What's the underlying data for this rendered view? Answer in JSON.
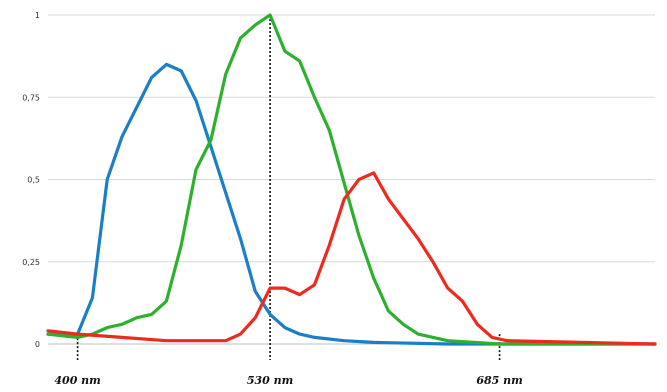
{
  "chart_data": {
    "type": "line",
    "title": "",
    "xlabel": "",
    "ylabel": "",
    "xlim": [
      380,
      790
    ],
    "ylim": [
      0,
      1
    ],
    "grid": true,
    "legend": "none",
    "y_ticks": [
      {
        "value": 0,
        "label": "0"
      },
      {
        "value": 0.25,
        "label": "0,25"
      },
      {
        "value": 0.5,
        "label": "0,5"
      },
      {
        "value": 0.75,
        "label": "0,75"
      },
      {
        "value": 1,
        "label": "1"
      }
    ],
    "x_markers": [
      {
        "value": 400,
        "label": "400 nm"
      },
      {
        "value": 530,
        "label": "530 nm"
      },
      {
        "value": 685,
        "label": "685 nm"
      }
    ],
    "series": [
      {
        "color": "#1a7fc4",
        "points": [
          [
            380,
            0.03
          ],
          [
            400,
            0.03
          ],
          [
            410,
            0.14
          ],
          [
            420,
            0.5
          ],
          [
            430,
            0.63
          ],
          [
            440,
            0.72
          ],
          [
            450,
            0.81
          ],
          [
            460,
            0.85
          ],
          [
            470,
            0.83
          ],
          [
            480,
            0.74
          ],
          [
            490,
            0.6
          ],
          [
            500,
            0.46
          ],
          [
            510,
            0.32
          ],
          [
            520,
            0.16
          ],
          [
            530,
            0.09
          ],
          [
            540,
            0.05
          ],
          [
            550,
            0.03
          ],
          [
            560,
            0.02
          ],
          [
            580,
            0.01
          ],
          [
            600,
            0.005
          ],
          [
            650,
            0.0
          ],
          [
            790,
            0.0
          ]
        ]
      },
      {
        "color": "#2db02d",
        "points": [
          [
            380,
            0.03
          ],
          [
            400,
            0.02
          ],
          [
            410,
            0.03
          ],
          [
            420,
            0.05
          ],
          [
            430,
            0.06
          ],
          [
            440,
            0.08
          ],
          [
            450,
            0.09
          ],
          [
            460,
            0.13
          ],
          [
            470,
            0.3
          ],
          [
            480,
            0.53
          ],
          [
            490,
            0.62
          ],
          [
            500,
            0.82
          ],
          [
            510,
            0.93
          ],
          [
            520,
            0.97
          ],
          [
            530,
            1.0
          ],
          [
            540,
            0.89
          ],
          [
            550,
            0.86
          ],
          [
            560,
            0.75
          ],
          [
            570,
            0.65
          ],
          [
            580,
            0.49
          ],
          [
            590,
            0.33
          ],
          [
            600,
            0.2
          ],
          [
            610,
            0.1
          ],
          [
            620,
            0.06
          ],
          [
            630,
            0.03
          ],
          [
            650,
            0.01
          ],
          [
            685,
            0.0
          ],
          [
            790,
            0.0
          ]
        ]
      },
      {
        "color": "#ee2a1f",
        "points": [
          [
            380,
            0.04
          ],
          [
            400,
            0.03
          ],
          [
            430,
            0.02
          ],
          [
            460,
            0.01
          ],
          [
            500,
            0.01
          ],
          [
            510,
            0.03
          ],
          [
            520,
            0.08
          ],
          [
            530,
            0.17
          ],
          [
            540,
            0.17
          ],
          [
            550,
            0.15
          ],
          [
            560,
            0.18
          ],
          [
            570,
            0.3
          ],
          [
            580,
            0.44
          ],
          [
            590,
            0.5
          ],
          [
            600,
            0.52
          ],
          [
            610,
            0.44
          ],
          [
            620,
            0.38
          ],
          [
            630,
            0.32
          ],
          [
            640,
            0.25
          ],
          [
            650,
            0.17
          ],
          [
            660,
            0.13
          ],
          [
            670,
            0.06
          ],
          [
            680,
            0.02
          ],
          [
            690,
            0.01
          ],
          [
            790,
            0.0
          ]
        ]
      }
    ]
  }
}
